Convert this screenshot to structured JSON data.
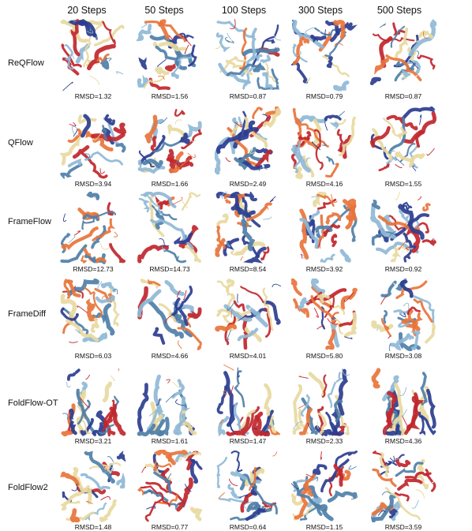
{
  "columns": [
    "20 Steps",
    "50 Steps",
    "100 Steps",
    "300 Steps",
    "500 Steps"
  ],
  "rows": [
    {
      "label": "ReQFlow",
      "rmsd": [
        "RMSD=1.32",
        "RMSD=1.56",
        "RMSD=0.87",
        "RMSD=0.79",
        "RMSD=0.87"
      ]
    },
    {
      "label": "QFlow",
      "rmsd": [
        "RMSD=3.94",
        "RMSD=1.66",
        "RMSD=2.49",
        "RMSD=4.16",
        "RMSD=1.55"
      ]
    },
    {
      "label": "FrameFlow",
      "rmsd": [
        "RMSD=12.73",
        "RMSD=14.73",
        "RMSD=8.54",
        "RMSD=3.92",
        "RMSD=0.92"
      ]
    },
    {
      "label": "FrameDiff",
      "rmsd": [
        "RMSD=6.03",
        "RMSD=4.66",
        "RMSD=4.01",
        "RMSD=5.80",
        "RMSD=3.08"
      ]
    },
    {
      "label": "FoldFlow-OT",
      "rmsd": [
        "RMSD=3.21",
        "RMSD=1.61",
        "RMSD=1.47",
        "RMSD=2.33",
        "RMSD=4.36"
      ]
    },
    {
      "label": "FoldFlow2",
      "rmsd": [
        "RMSD=1.48",
        "RMSD=0.77",
        "RMSD=0.64",
        "RMSD=1.15",
        "RMSD=3.59"
      ]
    }
  ],
  "colors": {
    "red": "#c0262d",
    "orange": "#e8743b",
    "navy": "#2b3d8f",
    "lightblue": "#8fb8d6",
    "cream": "#e8d9a0",
    "steel": "#4f7fa8"
  }
}
